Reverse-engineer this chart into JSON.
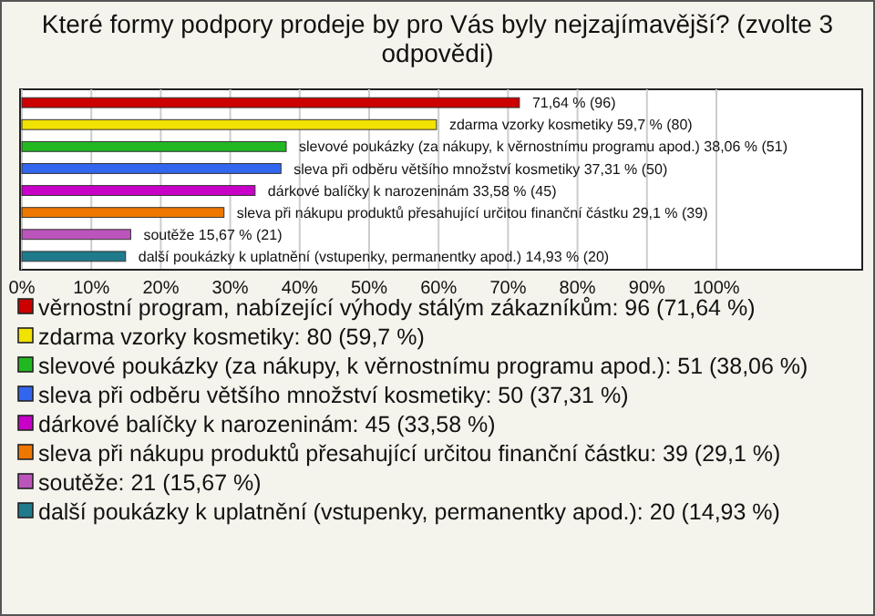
{
  "chart_data": {
    "type": "bar",
    "orientation": "horizontal",
    "stacked": true,
    "title": "Které formy podpory prodeje by pro Vás byly nejzajímavější? (zvolte 3 odpovědi)",
    "categories": [
      null,
      null,
      null,
      null,
      null,
      null,
      null,
      null
    ],
    "series": [
      {
        "name": "věrnostní program, nabízející výhody stálým zákazníkům: 96 (71,64 %)",
        "color": "#cc0000",
        "values": [
          71.64,
          null,
          null,
          null,
          null,
          null,
          null,
          null
        ],
        "value_labels": [
          "71,64 % (96)",
          null,
          null,
          null,
          null,
          null,
          null,
          null
        ]
      },
      {
        "name": "zdarma vzorky kosmetiky: 80 (59,7 %)",
        "color": "#f2e200",
        "values": [
          null,
          59.7,
          null,
          null,
          null,
          null,
          null,
          null
        ],
        "value_labels": [
          null,
          "zdarma vzorky kosmetiky 59,7 % (80)",
          null,
          null,
          null,
          null,
          null,
          null
        ]
      },
      {
        "name": "slevové poukázky (za nákupy, k věrnostnímu programu apod.): 51 (38,06 %)",
        "color": "#22b822",
        "values": [
          null,
          null,
          38.06,
          null,
          null,
          null,
          null,
          null
        ],
        "value_labels": [
          null,
          null,
          "slevové poukázky (za nákupy, k věrnostnímu programu apod.) 38,06 % (51)",
          null,
          null,
          null,
          null,
          null
        ]
      },
      {
        "name": "sleva při odběru většího množství kosmetiky: 50 (37,31 %)",
        "color": "#3366ee",
        "values": [
          null,
          null,
          null,
          37.31,
          null,
          null,
          null,
          null
        ],
        "value_labels": [
          null,
          null,
          null,
          "sleva při odběru většího množství kosmetiky 37,31 % (50)",
          null,
          null,
          null,
          null
        ]
      },
      {
        "name": "dárkové balíčky k narozeninám: 45 (33,58 %)",
        "color": "#c800c8",
        "values": [
          null,
          null,
          null,
          null,
          33.58,
          null,
          null,
          null
        ],
        "value_labels": [
          null,
          null,
          null,
          null,
          "dárkové balíčky k narozeninám 33,58 % (45)",
          null,
          null,
          null
        ]
      },
      {
        "name": "sleva při nákupu produktů přesahující určitou finanční částku: 39 (29,1 %)",
        "color": "#ee7700",
        "values": [
          null,
          null,
          null,
          null,
          null,
          29.1,
          null,
          null
        ],
        "value_labels": [
          null,
          null,
          null,
          null,
          null,
          "sleva při nákupu produktů přesahující určitou finanční částku 29,1 % (39)",
          null,
          null
        ]
      },
      {
        "name": "soutěže: 21 (15,67 %)",
        "color": "#bb55bb",
        "values": [
          null,
          null,
          null,
          null,
          null,
          null,
          15.67,
          null
        ],
        "value_labels": [
          null,
          null,
          null,
          null,
          null,
          null,
          "soutěže 15,67 % (21)",
          null
        ]
      },
      {
        "name": "další poukázky k uplatnění (vstupenky, permanentky apod.): 20 (14,93 %)",
        "color": "#1f7a8c",
        "values": [
          null,
          null,
          null,
          null,
          null,
          null,
          null,
          14.93
        ],
        "value_labels": [
          null,
          null,
          null,
          null,
          null,
          null,
          null,
          "další poukázky k uplatnění (vstupenky, permanentky apod.) 14,93 % (20)"
        ]
      }
    ],
    "xlim": [
      0,
      121
    ],
    "xticks": [
      {
        "value": 0,
        "label": "0%"
      },
      {
        "value": 10,
        "label": "10%"
      },
      {
        "value": 20,
        "label": "20%"
      },
      {
        "value": 30,
        "label": "30%"
      },
      {
        "value": 40,
        "label": "40%"
      },
      {
        "value": 50,
        "label": "50%"
      },
      {
        "value": 60,
        "label": "60%"
      },
      {
        "value": 70,
        "label": "70%"
      },
      {
        "value": 80,
        "label": "80%"
      },
      {
        "value": 90,
        "label": "90%"
      },
      {
        "value": 100,
        "label": "100%"
      }
    ],
    "grid": "x",
    "legend": "bottom",
    "tick_labels": "x"
  }
}
